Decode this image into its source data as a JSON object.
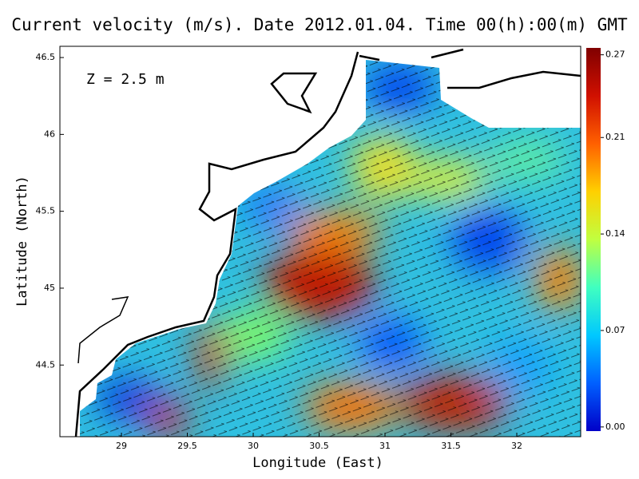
{
  "chart_data": {
    "type": "vector-map",
    "title": "Current velocity (m/s). Date 2012.01.04. Time 00(h):00(m) GMT",
    "annotation": "Z = 2.5 m",
    "xlabel": "Longitude (East)",
    "ylabel": "Latitude (North)",
    "xlim": [
      28.533,
      32.485
    ],
    "ylim": [
      44.034,
      46.573
    ],
    "xticks": [
      29,
      29.5,
      30,
      30.5,
      31,
      31.5,
      32
    ],
    "yticks": [
      44.5,
      45,
      45.5,
      46,
      46.5
    ],
    "colorbar": {
      "lim": [
        -0.003,
        0.275
      ],
      "ticks": [
        {
          "value": 0,
          "label": "0.00"
        },
        0.07,
        0.14,
        0.21,
        0.27
      ],
      "colors": [
        "#0000c8",
        "#0060ff",
        "#00c8ff",
        "#40ffc0",
        "#c0ff40",
        "#ffd000",
        "#ff6000",
        "#d01000",
        "#800000"
      ]
    }
  }
}
